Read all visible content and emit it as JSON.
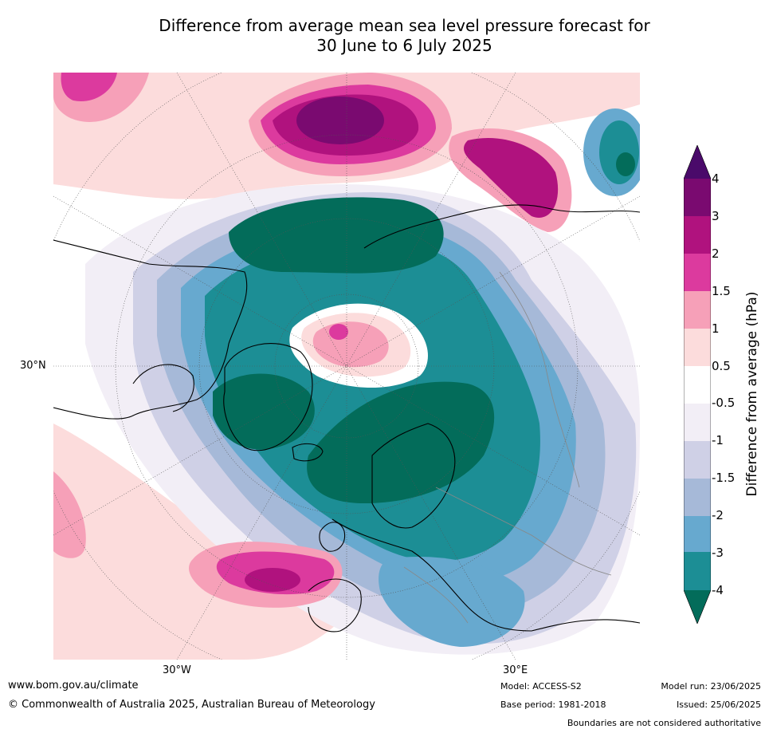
{
  "title_line1": "Difference from average mean sea level pressure forecast for",
  "title_line2": "30 June to 6 July 2025",
  "map_labels": {
    "left_lat": "30°N",
    "bottom_left_lon": "30°W",
    "bottom_right_lon": "30°E"
  },
  "colorbar": {
    "label": "Difference from average (hPa)",
    "ticks": [
      "4",
      "3",
      "2",
      "1.5",
      "1",
      "0.5",
      "-0.5",
      "-1",
      "-1.5",
      "-2",
      "-3",
      "-4"
    ],
    "colors": {
      "above_4": "#4a0a6a",
      "3_to_4": "#7a0a70",
      "2_to_3": "#b0127e",
      "1.5_to_2": "#dc3a9e",
      "1_to_1.5": "#f6a0b8",
      "0.5_to_1": "#fcdcdc",
      "-0.5_to_0.5": "#ffffff",
      "-1_to_-0.5": "#f2eef6",
      "-1.5_to_-1": "#cfd0e6",
      "-2_to_-1.5": "#a6b9d8",
      "-3_to_-2": "#67a9cf",
      "-4_to_-3": "#1c8e95",
      "below_-4": "#036c5a"
    }
  },
  "footer": {
    "website": "www.bom.gov.au/climate",
    "copyright": "© Commonwealth of Australia 2025, Australian Bureau of Meteorology",
    "model": "Model: ACCESS-S2",
    "base_period": "Base period: 1981-2018",
    "model_run": "Model run: 23/06/2025",
    "issued": "Issued: 25/06/2025",
    "disclaimer": "Boundaries are not considered authoritative"
  }
}
